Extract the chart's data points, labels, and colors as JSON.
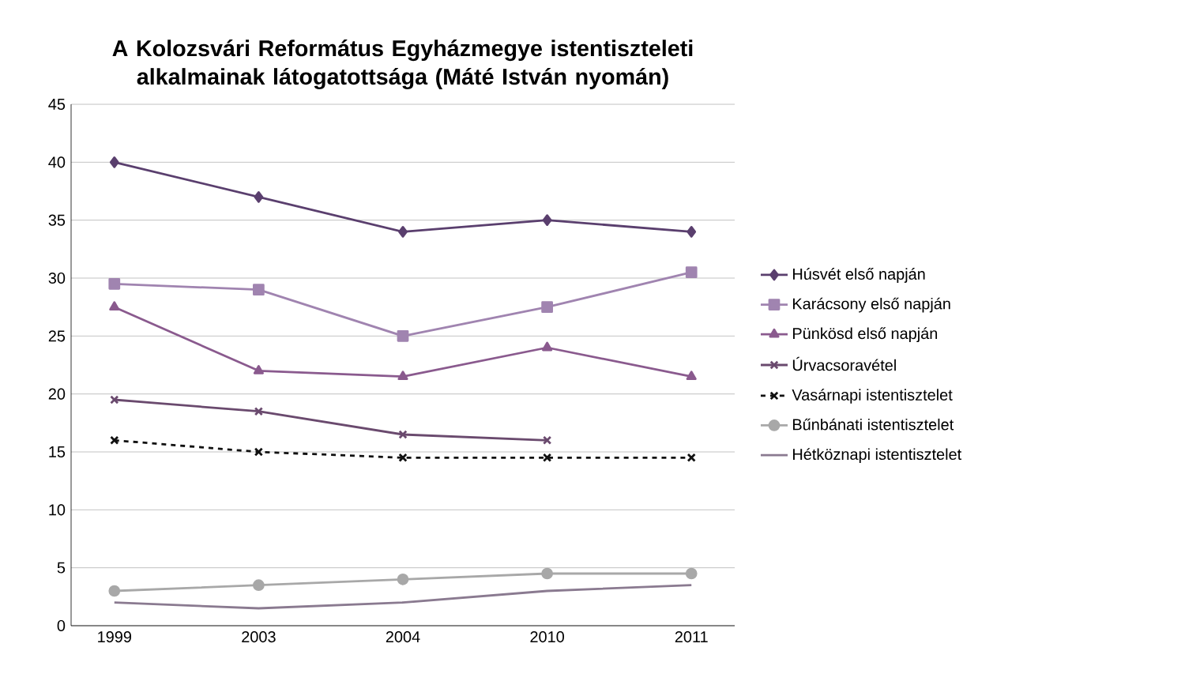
{
  "chart_data": {
    "type": "line",
    "title": "A Kolozsvári Református Egyházmegye istentiszteleti alkalmainak látogatottsága (Máté István nyomán)",
    "categories": [
      "1999",
      "2003",
      "2004",
      "2010",
      "2011"
    ],
    "ylim": [
      0,
      45
    ],
    "yticks": [
      0,
      5,
      10,
      15,
      20,
      25,
      30,
      35,
      40,
      45
    ],
    "grid": "y",
    "legend": "right",
    "series": [
      {
        "name": "Húsvét első napján",
        "color": "#5a3f6e",
        "marker": "diamond",
        "line_style": "solid",
        "values": [
          40,
          37,
          34,
          35,
          34
        ]
      },
      {
        "name": "Karácsony első napján",
        "color": "#a084b0",
        "marker": "square",
        "line_style": "solid",
        "values": [
          29.5,
          29,
          25,
          27.5,
          30.5
        ]
      },
      {
        "name": "Pünkösd első napján",
        "color": "#8a5a8e",
        "marker": "triangle",
        "line_style": "solid",
        "values": [
          27.5,
          22,
          21.5,
          24,
          21.5
        ]
      },
      {
        "name": "Úrvacsoravétel",
        "color": "#6a4a6e",
        "marker": "cross",
        "line_style": "solid",
        "values": [
          19.5,
          18.5,
          16.5,
          16,
          null
        ]
      },
      {
        "name": "Vasárnapi istentisztelet",
        "color": "#111111",
        "marker": "cross",
        "line_style": "dashed",
        "values": [
          16,
          15,
          14.5,
          14.5,
          14.5
        ]
      },
      {
        "name": "Bűnbánati istentisztelet",
        "color": "#a8a8a8",
        "marker": "circle",
        "line_style": "solid",
        "values": [
          3,
          3.5,
          4,
          4.5,
          4.5
        ]
      },
      {
        "name": "Hétköznapi istentisztelet",
        "color": "#8a7a90",
        "marker": "none",
        "line_style": "solid",
        "values": [
          2,
          1.5,
          2,
          3,
          3.5
        ]
      }
    ]
  }
}
